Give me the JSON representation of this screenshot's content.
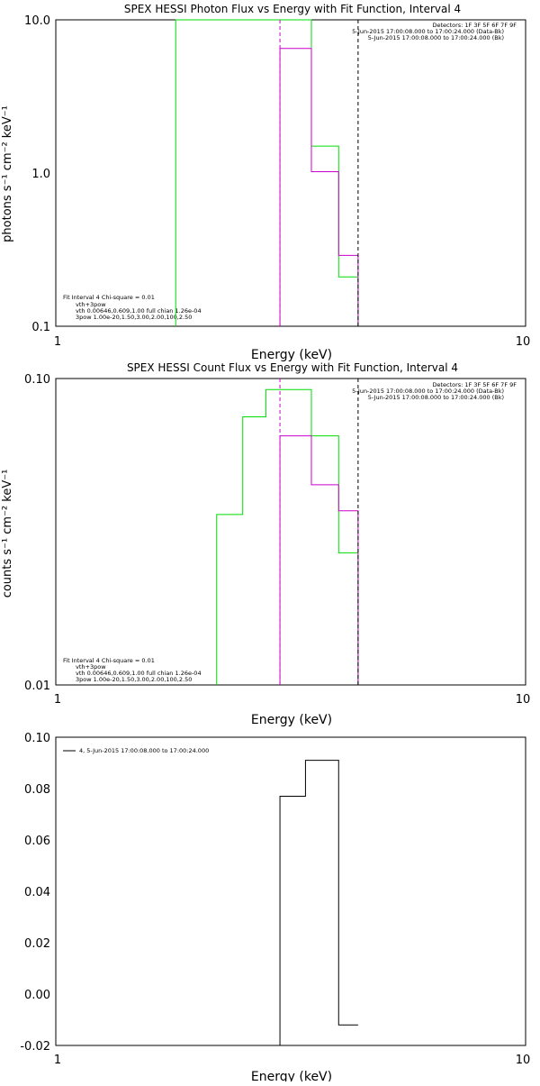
{
  "panel1_chart": {
    "type": "line",
    "title": "SPEX HESSI Photon Flux vs Energy with Fit Function, Interval 4",
    "xlabel": "Energy (keV)",
    "ylabel": "photons s⁻¹ cm⁻² keV⁻¹",
    "xscale": "log",
    "yscale": "log",
    "xlim": [
      1,
      10
    ],
    "ylim": [
      0.1,
      10
    ],
    "x_tick_labels": [
      "1",
      "10"
    ],
    "y_tick_labels": [
      "0.1",
      "1.0",
      "10.0"
    ],
    "legend_top": [
      "Detectors: 1F 3F 5F 6F 7F 9F",
      "5-Jun-2015 17:00:08.000 to 17:00:24.000 (Data-Bk)",
      "5-Jun-2015 17:00:08.000 to 17:00:24.000 (Bk)"
    ],
    "legend_bottom": [
      "Fit Interval 4   Chi-square = 0.01",
      "vth+3pow",
      "vth 0.00646,0.609,1.00  full chian 1.26e-04",
      "3pow 1.00e-20,1.50,3.00,2.00,100,2.50"
    ],
    "series": [
      {
        "color": "#00dd00",
        "steps": [
          [
            1.8,
            2.0,
            10
          ],
          [
            2.0,
            2.2,
            10
          ],
          [
            3.0,
            3.5,
            10
          ],
          [
            3.5,
            4.0,
            1.5
          ],
          [
            4.0,
            4.4,
            0.21
          ],
          [
            4.4,
            4.4,
            0.21
          ]
        ]
      },
      {
        "color": "#cc00cc",
        "steps": [
          [
            3.0,
            3.5,
            6.5
          ],
          [
            3.5,
            4.0,
            1.02
          ],
          [
            4.0,
            4.4,
            0.29
          ]
        ]
      }
    ]
  },
  "panel2_chart": {
    "type": "line",
    "title": "SPEX HESSI Count Flux vs Energy with Fit Function, Interval 4",
    "xlabel": "Energy (keV)",
    "ylabel": "counts s⁻¹ cm⁻² keV⁻¹",
    "xscale": "log",
    "yscale": "log",
    "xlim": [
      1,
      10
    ],
    "ylim": [
      0.01,
      0.1
    ],
    "x_tick_labels": [
      "1",
      "10"
    ],
    "y_tick_labels": [
      "0.01",
      "0.10"
    ],
    "legend_top": [
      "Detectors: 1F 3F 5F 6F 7F 9F",
      "5-Jun-2015 17:00:08.000 to 17:00:24.000 (Data-Bk)",
      "5-Jun-2015 17:00:08.000 to 17:00:24.000 (Bk)"
    ],
    "legend_bottom": [
      "Fit Interval 4   Chi-square = 0.01",
      "vth+3pow",
      "vth 0.00646,0.609,1.00  full chian 1.26e-04",
      "3pow 1.00e-20,1.50,3.00,2.00,100,2.50"
    ],
    "series": [
      {
        "color": "#00dd00",
        "steps": [
          [
            2.2,
            2.5,
            0.036
          ],
          [
            2.5,
            2.8,
            0.075
          ],
          [
            2.8,
            3.5,
            0.092
          ],
          [
            3.5,
            4.0,
            0.065
          ],
          [
            4.0,
            4.4,
            0.027
          ]
        ]
      },
      {
        "color": "#cc00cc",
        "steps": [
          [
            3.0,
            3.5,
            0.065
          ],
          [
            3.5,
            4.0,
            0.045
          ],
          [
            4.0,
            4.4,
            0.037
          ]
        ]
      }
    ]
  },
  "panel3_chart": {
    "type": "line",
    "title": "",
    "xlabel": "Energy (keV)",
    "ylabel": "",
    "xscale": "log",
    "yscale": "linear",
    "xlim": [
      1,
      10
    ],
    "ylim": [
      -0.02,
      0.1
    ],
    "x_tick_labels": [
      "1",
      "10"
    ],
    "y_tick_labels": [
      "-0.02",
      "0.00",
      "0.02",
      "0.04",
      "0.06",
      "0.08",
      "0.10"
    ],
    "legend": "4,  5-Jun-2015 17:00:08.000 to 17:00:24.000",
    "series": [
      {
        "color": "#000000",
        "steps": [
          [
            3.0,
            3.4,
            0.077
          ],
          [
            3.4,
            4.0,
            0.091
          ],
          [
            4.0,
            4.4,
            -0.012
          ]
        ]
      }
    ]
  }
}
